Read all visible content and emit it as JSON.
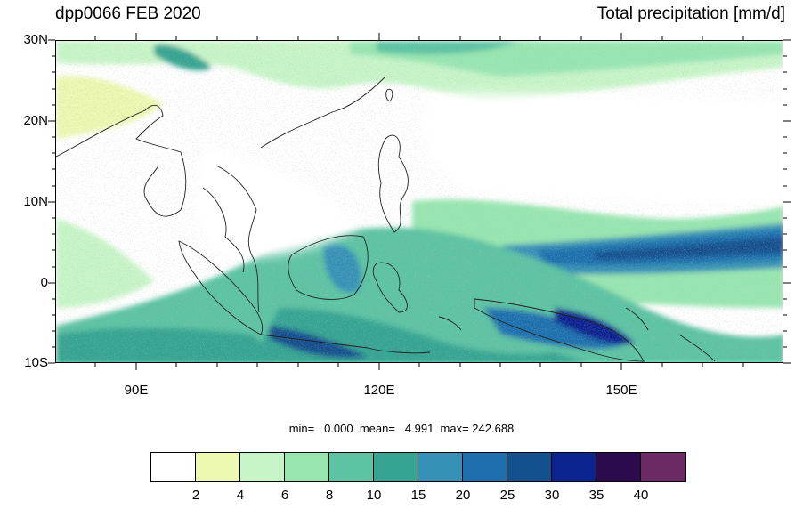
{
  "title_left": "dpp0066 FEB 2020",
  "title_right": "Total precipitation [mm/d]",
  "lat_ticks": [
    "30N",
    "20N",
    "10N",
    "0",
    "10S"
  ],
  "lon_ticks": [
    "90E",
    "120E",
    "150E"
  ],
  "stats": {
    "text": "min=   0.000  mean=   4.991  max= 242.688",
    "min": 0.0,
    "mean": 4.991,
    "max": 242.688
  },
  "colorbar": {
    "labels": [
      "2",
      "4",
      "6",
      "8",
      "10",
      "15",
      "20",
      "25",
      "30",
      "35",
      "40"
    ],
    "colors": [
      "#ffffff",
      "#edf8b1",
      "#c7f5c8",
      "#97e6b0",
      "#5cc3a3",
      "#35a493",
      "#3592b6",
      "#1d6fae",
      "#12508e",
      "#0c2490",
      "#2b0a4e",
      "#6b2a63"
    ]
  },
  "map_extent": {
    "lon": [
      80,
      170
    ],
    "lat": [
      -10,
      30
    ]
  }
}
